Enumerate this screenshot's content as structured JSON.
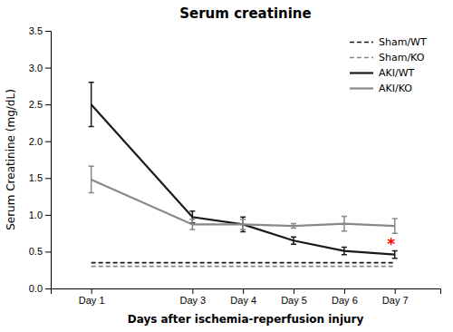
{
  "chart_data": {
    "type": "line",
    "title": "Serum creatinine",
    "x_label": "Days after ischemia-reperfusion injury",
    "y_label": "Serum Creatinine (mg/dL)",
    "x": [
      1,
      3,
      4,
      5,
      6,
      7
    ],
    "xlim": [
      0.2,
      7.9
    ],
    "xticks": [
      {
        "value": 1,
        "label": "Day 1"
      },
      {
        "value": 3,
        "label": "Day 3"
      },
      {
        "value": 4,
        "label": "Day 4"
      },
      {
        "value": 5,
        "label": "Day 5"
      },
      {
        "value": 6,
        "label": "Day 6"
      },
      {
        "value": 7,
        "label": "Day 7"
      }
    ],
    "ylim": [
      0,
      3.5
    ],
    "yticks": [
      {
        "value": 0,
        "label": "0.0"
      },
      0.5,
      {
        "value": 1.0,
        "label": "1.0"
      },
      1.5,
      {
        "value": 2.0,
        "label": "2.0"
      },
      2.5,
      {
        "value": 3.0,
        "label": "3.0"
      },
      3.5
    ],
    "series": [
      {
        "name": "Sham/WT",
        "color": "#1a1a1a",
        "line_style": "dashed",
        "values": [
          0.35,
          0.35,
          0.35,
          0.35,
          0.35,
          0.35
        ],
        "errors": [
          0.0,
          0.0,
          0.0,
          0.0,
          0.0,
          0.0
        ]
      },
      {
        "name": "Sham/KO",
        "color": "#888888",
        "line_style": "dashed",
        "values": [
          0.3,
          0.3,
          0.3,
          0.3,
          0.3,
          0.3
        ],
        "errors": [
          0.0,
          0.0,
          0.0,
          0.0,
          0.0,
          0.0
        ]
      },
      {
        "name": "AKI/WT",
        "color": "#1a1a1a",
        "line_style": "solid",
        "values": [
          2.5,
          0.97,
          0.87,
          0.65,
          0.51,
          0.46
        ],
        "errors": [
          0.3,
          0.08,
          0.1,
          0.05,
          0.05,
          0.05
        ]
      },
      {
        "name": "AKI/KO",
        "color": "#888888",
        "line_style": "solid",
        "values": [
          1.48,
          0.87,
          0.87,
          0.85,
          0.88,
          0.85
        ],
        "errors": [
          0.18,
          0.07,
          0.07,
          0.03,
          0.1,
          0.1
        ]
      }
    ],
    "annotations": [
      {
        "text": "*",
        "x": 6.85,
        "y": 0.595,
        "color": "#ff0000"
      }
    ],
    "legend": "upper right",
    "grid": false
  }
}
